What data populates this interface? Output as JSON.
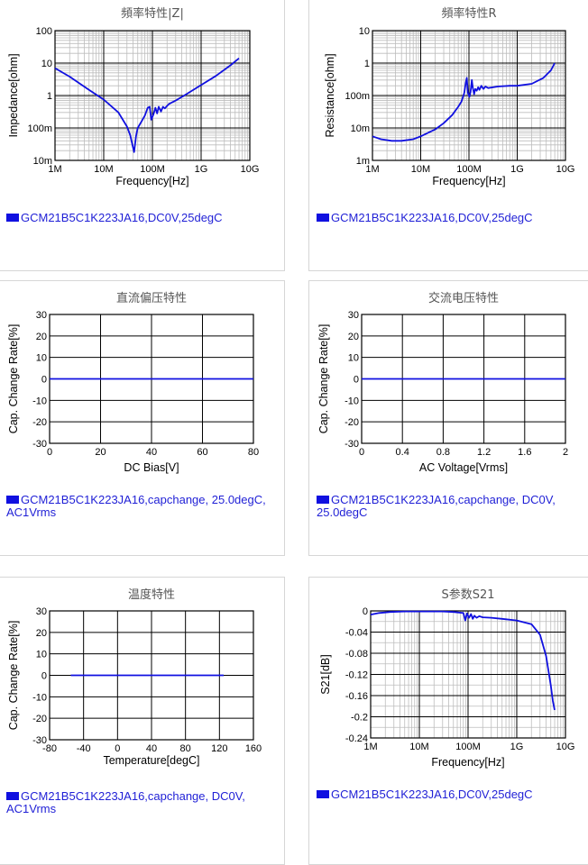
{
  "colors": {
    "curve": "#1010e0",
    "legend_text": "#1f1fd6",
    "grid_major": "#000000",
    "grid_minor": "#bdbdbd"
  },
  "panels": [
    {
      "id": "impedance",
      "chart_data": {
        "type": "line",
        "title": "頻率特性|Z|",
        "xlabel": "Frequency[Hz]",
        "ylabel": "Impedance[ohm]",
        "xscale": "log",
        "yscale": "log",
        "xlim": [
          1000000,
          10000000000
        ],
        "ylim": [
          0.01,
          100
        ],
        "xticks": [
          "1M",
          "10M",
          "100M",
          "1G",
          "10G"
        ],
        "yticks": [
          "100",
          "10",
          "1",
          "100m",
          "10m"
        ],
        "grid": true,
        "series": [
          {
            "name": "GCM21B5C1K223JA16,DC0V,25degC",
            "x": [
              1000000.0,
              2000000.0,
              5000000.0,
              10000000.0,
              20000000.0,
              30000000.0,
              35000000.0,
              40000000.0,
              42000000.0,
              46000000.0,
              50000000.0,
              60000000.0,
              70000000.0,
              80000000.0,
              88000000.0,
              95000000.0,
              105000000.0,
              115000000.0,
              125000000.0,
              135000000.0,
              150000000.0,
              165000000.0,
              180000000.0,
              200000000.0,
              220000000.0,
              300000000.0,
              500000000.0,
              1000000000.0,
              2000000000.0,
              4000000000.0,
              6000000000.0
            ],
            "y": [
              7,
              3.8,
              1.5,
              0.75,
              0.3,
              0.11,
              0.06,
              0.025,
              0.018,
              0.055,
              0.1,
              0.16,
              0.24,
              0.42,
              0.45,
              0.18,
              0.26,
              0.42,
              0.28,
              0.45,
              0.32,
              0.45,
              0.4,
              0.48,
              0.55,
              0.7,
              1.1,
              2.1,
              4,
              8.5,
              14
            ]
          }
        ]
      },
      "legend": "GCM21B5C1K223JA16,DC0V,25degC"
    },
    {
      "id": "resistance",
      "chart_data": {
        "type": "line",
        "title": "頻率特性R",
        "xlabel": "Frequency[Hz]",
        "ylabel": "Resistance[ohm]",
        "xscale": "log",
        "yscale": "log",
        "xlim": [
          1000000,
          10000000000
        ],
        "ylim": [
          0.001,
          10
        ],
        "xticks": [
          "1M",
          "10M",
          "100M",
          "1G",
          "10G"
        ],
        "yticks": [
          "10",
          "1",
          "100m",
          "10m",
          "1m"
        ],
        "grid": true,
        "series": [
          {
            "name": "GCM21B5C1K223JA16,DC0V,25degC",
            "x": [
              1000000.0,
              1500000.0,
              2500000.0,
              4000000.0,
              7000000.0,
              10000000.0,
              20000000.0,
              30000000.0,
              45000000.0,
              60000000.0,
              70000000.0,
              80000000.0,
              86000000.0,
              90000000.0,
              95000000.0,
              102000000.0,
              108000000.0,
              115000000.0,
              120000000.0,
              128000000.0,
              135000000.0,
              145000000.0,
              155000000.0,
              165000000.0,
              180000000.0,
              200000000.0,
              220000000.0,
              250000000.0,
              400000000.0,
              700000000.0,
              1000000000.0,
              2000000000.0,
              3500000000.0,
              5000000000.0,
              6000000000.0
            ],
            "y": [
              0.0055,
              0.0045,
              0.004,
              0.004,
              0.0045,
              0.0055,
              0.009,
              0.014,
              0.025,
              0.045,
              0.065,
              0.12,
              0.25,
              0.35,
              0.12,
              0.09,
              0.13,
              0.3,
              0.18,
              0.11,
              0.16,
              0.14,
              0.18,
              0.15,
              0.2,
              0.16,
              0.19,
              0.17,
              0.19,
              0.2,
              0.2,
              0.23,
              0.35,
              0.6,
              1.0
            ]
          }
        ]
      },
      "legend": "GCM21B5C1K223JA16,DC0V,25degC"
    },
    {
      "id": "dc-bias",
      "chart_data": {
        "type": "line",
        "title": "直流偏压特性",
        "xlabel": "DC Bias[V]",
        "ylabel": "Cap. Change Rate[%]",
        "xlim": [
          0,
          80
        ],
        "ylim": [
          -30,
          30
        ],
        "xticks": [
          "0",
          "20",
          "40",
          "60",
          "80"
        ],
        "yticks": [
          "30",
          "20",
          "10",
          "0",
          "-10",
          "-20",
          "-30"
        ],
        "grid": true,
        "series": [
          {
            "name": "GCM21B5C1K223JA16,capchange, 25.0degC, AC1Vrms",
            "x": [
              0,
              80
            ],
            "y": [
              0,
              0
            ]
          }
        ]
      },
      "legend": "GCM21B5C1K223JA16,capchange, 25.0degC, AC1Vrms"
    },
    {
      "id": "ac-voltage",
      "chart_data": {
        "type": "line",
        "title": "交流电压特性",
        "xlabel": "AC Voltage[Vrms]",
        "ylabel": "Cap. Change Rate[%]",
        "xlim": [
          0,
          2
        ],
        "ylim": [
          -30,
          30
        ],
        "xticks": [
          "0",
          "0.4",
          "0.8",
          "1.2",
          "1.6",
          "2"
        ],
        "yticks": [
          "30",
          "20",
          "10",
          "0",
          "-10",
          "-20",
          "-30"
        ],
        "grid": true,
        "series": [
          {
            "name": "GCM21B5C1K223JA16,capchange, DC0V, 25.0degC",
            "x": [
              0,
              2
            ],
            "y": [
              0,
              0
            ]
          }
        ]
      },
      "legend": "GCM21B5C1K223JA16,capchange, DC0V, 25.0degC"
    },
    {
      "id": "temperature",
      "chart_data": {
        "type": "line",
        "title": "温度特性",
        "xlabel": "Temperature[degC]",
        "ylabel": "Cap. Change Rate[%]",
        "xlim": [
          -80,
          160
        ],
        "ylim": [
          -30,
          30
        ],
        "xticks": [
          "-80",
          "-40",
          "0",
          "40",
          "80",
          "120",
          "160"
        ],
        "yticks": [
          "30",
          "20",
          "10",
          "0",
          "-10",
          "-20",
          "-30"
        ],
        "grid": true,
        "series": [
          {
            "name": "GCM21B5C1K223JA16,capchange, DC0V, AC1Vrms",
            "x": [
              -55,
              125
            ],
            "y": [
              0,
              0
            ]
          }
        ]
      },
      "legend": "GCM21B5C1K223JA16,capchange, DC0V, AC1Vrms"
    },
    {
      "id": "s21",
      "chart_data": {
        "type": "line",
        "title": "S参数S21",
        "xlabel": "Frequency[Hz]",
        "ylabel": "S21[dB]",
        "xscale": "log",
        "xlim": [
          1000000,
          10000000000
        ],
        "ylim": [
          -0.24,
          0
        ],
        "xticks": [
          "1M",
          "10M",
          "100M",
          "1G",
          "10G"
        ],
        "yticks": [
          "0",
          "-0.04",
          "-0.08",
          "-0.12",
          "-0.16",
          "-0.2",
          "-0.24"
        ],
        "grid": true,
        "series": [
          {
            "name": "GCM21B5C1K223JA16,DC0V,25degC",
            "x": [
              1000000.0,
              1500000.0,
              2500000.0,
              5000000.0,
              10000000.0,
              30000000.0,
              50000000.0,
              80000000.0,
              88000000.0,
              95000000.0,
              105000000.0,
              115000000.0,
              125000000.0,
              135000000.0,
              150000000.0,
              170000000.0,
              200000000.0,
              300000000.0,
              500000000.0,
              1000000000.0,
              2000000000.0,
              3000000000.0,
              4000000000.0,
              5000000000.0,
              5500000000.0,
              6000000000.0
            ],
            "y": [
              -0.007,
              -0.004,
              -0.002,
              -0.001,
              -0.001,
              -0.001,
              -0.002,
              -0.004,
              -0.018,
              -0.005,
              -0.013,
              -0.006,
              -0.015,
              -0.009,
              -0.013,
              -0.01,
              -0.012,
              -0.013,
              -0.015,
              -0.018,
              -0.025,
              -0.045,
              -0.085,
              -0.14,
              -0.17,
              -0.187
            ]
          }
        ]
      },
      "legend": "GCM21B5C1K223JA16,DC0V,25degC"
    }
  ]
}
